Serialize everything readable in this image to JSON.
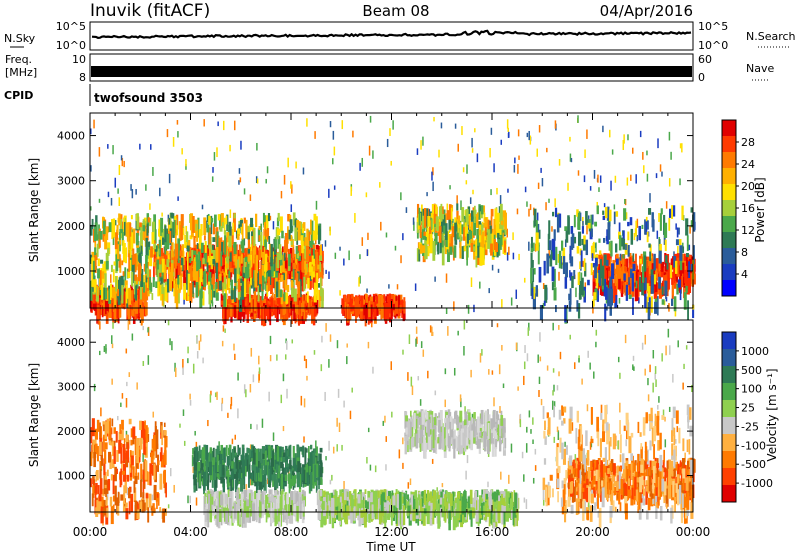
{
  "header": {
    "station": "Inuvik (fitACF)",
    "beam": "Beam 08",
    "date": "04/Apr/2016"
  },
  "strips": {
    "nsky_label": "N.Sky",
    "nsky_ticks": [
      "10^5",
      "10^0"
    ],
    "nsearch_label": "N.Search",
    "nsearch_ticks": [
      "10^5",
      "10^0"
    ],
    "freq_label_1": "Freq.",
    "freq_label_2": "[MHz]",
    "freq_ticks": [
      "10",
      "8"
    ],
    "nave_label": "Nave",
    "nave_ticks": [
      "60",
      "0"
    ],
    "cpid_label": "CPID",
    "cpid_value": "twofsound 3503"
  },
  "chart_data": [
    {
      "type": "heatmap",
      "name": "power-panel",
      "ylabel": "Slant Range [km]",
      "xlabel": "",
      "yticks": [
        "4000",
        "3000",
        "2000",
        "1000"
      ],
      "ylim": [
        180,
        4500
      ],
      "xlim": [
        "00:00",
        "24:00"
      ],
      "colorbar_label": "Power [dB]",
      "colorbar_ticks": [
        "28",
        "24",
        "20",
        "16",
        "12",
        "8",
        "4"
      ],
      "colorbar_colors": [
        "#e00000",
        "#ff3a00",
        "#ff7a00",
        "#ffb000",
        "#ffe000",
        "#a6cf3a",
        "#4aa84a",
        "#2e7a55",
        "#2a5c9a",
        "#1a3cc0",
        "#0000ff"
      ],
      "regions": [
        {
          "t0": 0.0,
          "t1": 2.2,
          "r0": 200,
          "r1": 700,
          "level": "high"
        },
        {
          "t0": 2.5,
          "t1": 9.2,
          "r0": 900,
          "r1": 1600,
          "level": "high"
        },
        {
          "t0": 5.2,
          "t1": 9.0,
          "r0": 200,
          "r1": 500,
          "level": "high"
        },
        {
          "t0": 0.0,
          "t1": 9.2,
          "r0": 500,
          "r1": 2300,
          "level": "mid"
        },
        {
          "t0": 13.0,
          "t1": 16.5,
          "r0": 1500,
          "r1": 2500,
          "level": "mid"
        },
        {
          "t0": 10.0,
          "t1": 12.5,
          "r0": 200,
          "r1": 500,
          "level": "high"
        },
        {
          "t0": 20.0,
          "t1": 24.0,
          "r0": 700,
          "r1": 1400,
          "level": "high"
        },
        {
          "t0": 17.5,
          "t1": 24.0,
          "r0": 200,
          "r1": 2500,
          "level": "low"
        }
      ]
    },
    {
      "type": "heatmap",
      "name": "velocity-panel",
      "ylabel": "Slant Range [km]",
      "xlabel": "Time UT",
      "xticks": [
        "00:00",
        "04:00",
        "08:00",
        "12:00",
        "16:00",
        "20:00",
        "00:00"
      ],
      "yticks": [
        "4000",
        "3000",
        "2000",
        "1000"
      ],
      "ylim": [
        180,
        4500
      ],
      "xlim": [
        "00:00",
        "24:00"
      ],
      "colorbar_label": "Velocity [m s⁻¹]",
      "colorbar_ticks": [
        "1000",
        "500",
        "100",
        "25",
        "-25",
        "-100",
        "-500",
        "-1000"
      ],
      "colorbar_colors": [
        "#1a3cc0",
        "#2a5c9a",
        "#2e7a55",
        "#4aa84a",
        "#8fd050",
        "#c8c8c8",
        "#ffb040",
        "#ff7a00",
        "#ff4000",
        "#e00000"
      ],
      "regions": [
        {
          "t0": 0.0,
          "t1": 3.0,
          "r0": 200,
          "r1": 2300,
          "level": "negative"
        },
        {
          "t0": 4.0,
          "t1": 9.2,
          "r0": 900,
          "r1": 1700,
          "level": "positive"
        },
        {
          "t0": 4.5,
          "t1": 8.5,
          "r0": 200,
          "r1": 700,
          "level": "near-zero"
        },
        {
          "t0": 12.5,
          "t1": 16.5,
          "r0": 1800,
          "r1": 2500,
          "level": "near-zero"
        },
        {
          "t0": 9.0,
          "t1": 17.0,
          "r0": 200,
          "r1": 700,
          "level": "weak-positive"
        },
        {
          "t0": 19.0,
          "t1": 24.0,
          "r0": 700,
          "r1": 1400,
          "level": "negative"
        },
        {
          "t0": 18.0,
          "t1": 24.0,
          "r0": 200,
          "r1": 2600,
          "level": "weak-negative"
        }
      ]
    }
  ]
}
